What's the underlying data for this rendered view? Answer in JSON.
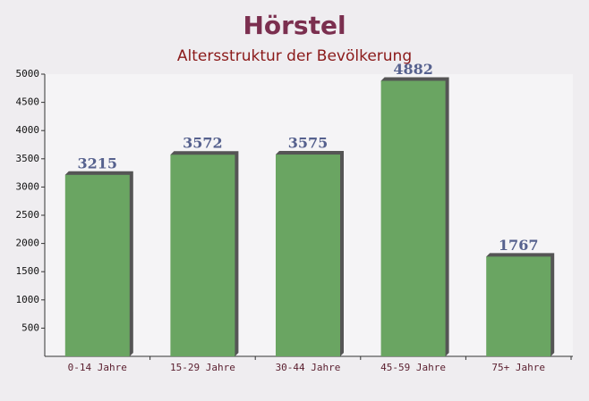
{
  "chart_data": {
    "type": "bar",
    "title": "Hörstel",
    "subtitle": "Altersstruktur der Bevölkerung",
    "categories": [
      "0-14 Jahre",
      "15-29 Jahre",
      "30-44 Jahre",
      "45-59 Jahre",
      "75+ Jahre"
    ],
    "values": [
      3215,
      3572,
      3575,
      4882,
      1767
    ],
    "color": "#6aa562",
    "ylim": [
      0,
      5000
    ],
    "yticks": [
      500,
      1000,
      1500,
      2000,
      2500,
      3000,
      3500,
      4000,
      4500,
      5000
    ],
    "grid": false
  }
}
